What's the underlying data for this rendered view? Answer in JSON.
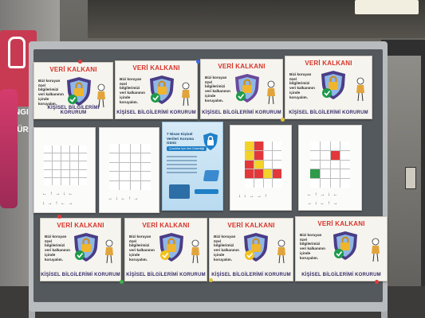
{
  "scene": {
    "left_sign_text_1": "ANGIN",
    "left_sign_text_2": "DÜRÜ",
    "colors": {
      "board_frame": "#b9bcbf",
      "board_surface": "#54595d",
      "title_red": "#d6342a",
      "footer_purple": "#3a2d6b",
      "sign_red": "#c83a52",
      "check_green": "#1d9a4a",
      "check_yellow": "#f2c21c"
    }
  },
  "posters_top": [
    {
      "title": "VERİ KALKANI",
      "side_text": "Bizi koruyan özel bilgilerimizi veri kalkanının içinde koruyalım.",
      "footer": "KİŞİSEL BİLGİLERİMİ KORURUM",
      "shield_color": "#4a3d86",
      "check": "green"
    },
    {
      "title": "VERİ KALKANI",
      "side_text": "Bizi koruyan özel bilgilerimizi veri kalkanının içinde koruyalım.",
      "footer": "KİŞİSEL BİLGİLERİMİ KORURUM",
      "shield_color": "#4a3d86",
      "check": "green"
    },
    {
      "title": "VERİ KALKANI",
      "side_text": "Bizi koruyan özel bilgilerimizi veri kalkanının içinde koruyalım.",
      "footer": "KİŞİSEL BİLGİLERİMİ KORURUM",
      "shield_color": "#6a4a9a",
      "check": "green"
    },
    {
      "title": "VERİ KALKANI",
      "side_text": "Bizi koruyan özel bilgilerimizi veri kalkanının içinde koruyalım.",
      "footer": "KİŞİSEL BİLGİLERİMİ KORURUM",
      "shield_color": "#4a3d86",
      "check": "green"
    }
  ],
  "posters_bottom": [
    {
      "title": "VERİ KALKANI",
      "side_text": "Bizi koruyan özel bilgilerimizi veri kalkanının içinde koruyalım.",
      "footer": "KİŞİSEL BİLGİLERİMİ KORURUM",
      "shield_color": "#4a3d86",
      "check": "green"
    },
    {
      "title": "VERİ KALKANI",
      "side_text": "Bizi koruyan özel bilgilerimizi veri kalkanının içinde koruyalım.",
      "footer": "KİŞİSEL BİLGİLERİMİ KORURUM",
      "shield_color": "#4a3d86",
      "check": "yellow"
    },
    {
      "title": "VERİ KALKANI",
      "side_text": "Bizi koruyan özel bilgilerimizi veri kalkanının içinde koruyalım.",
      "footer": "KİŞİSEL BİLGİLERİMİ KORURUM",
      "shield_color": "#4a3d86",
      "check": "yellow"
    },
    {
      "title": "VERİ KALKANI",
      "side_text": "Bizi koruyan özel bilgilerimizi veri kalkanının içinde koruyalım.",
      "footer": "KİŞİSEL BİLGİLERİMİ KORURUM",
      "shield_color": "#4a3d86",
      "check": "green"
    }
  ],
  "info_poster": {
    "title": "7 Nisan Kişisel Verileri Koruma Günü",
    "badge": "Çocuklar İçin Veri Güvenliği"
  },
  "worksheets": [
    {
      "kind": "grid-arrows"
    },
    {
      "kind": "grid-arrows"
    },
    {
      "kind": "colored-grid"
    },
    {
      "kind": "grid-arrows"
    }
  ]
}
